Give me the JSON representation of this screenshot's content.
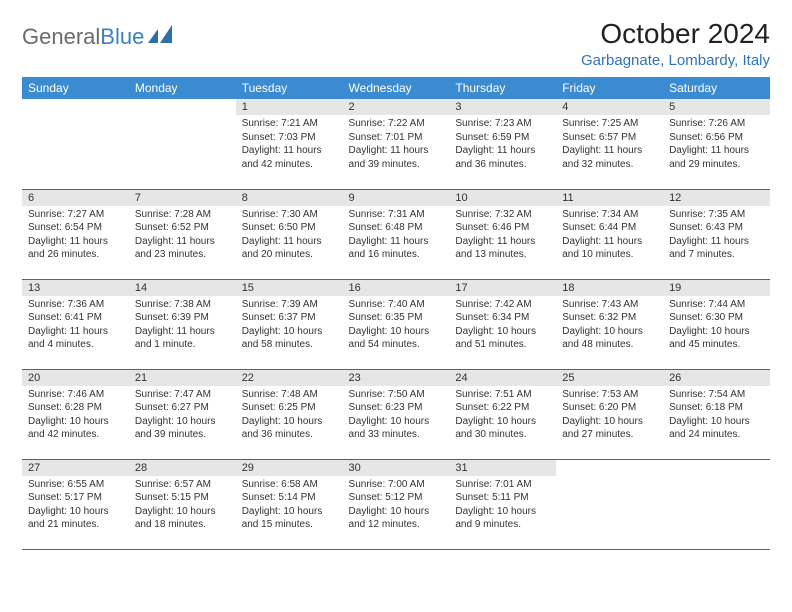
{
  "logo": {
    "general": "General",
    "blue": "Blue"
  },
  "title": "October 2024",
  "location": "Garbagnate, Lombardy, Italy",
  "colors": {
    "header_bg": "#3a8bd0",
    "header_text": "#ffffff",
    "daynum_bg": "#e6e6e6",
    "row_border": "#2f6fa8",
    "location_color": "#3074b5",
    "logo_gray": "#6b6b6b",
    "logo_blue": "#3b7fc4"
  },
  "weekdays": [
    "Sunday",
    "Monday",
    "Tuesday",
    "Wednesday",
    "Thursday",
    "Friday",
    "Saturday"
  ],
  "weeks": [
    [
      null,
      null,
      {
        "n": "1",
        "sr": "Sunrise: 7:21 AM",
        "ss": "Sunset: 7:03 PM",
        "dl": "Daylight: 11 hours and 42 minutes."
      },
      {
        "n": "2",
        "sr": "Sunrise: 7:22 AM",
        "ss": "Sunset: 7:01 PM",
        "dl": "Daylight: 11 hours and 39 minutes."
      },
      {
        "n": "3",
        "sr": "Sunrise: 7:23 AM",
        "ss": "Sunset: 6:59 PM",
        "dl": "Daylight: 11 hours and 36 minutes."
      },
      {
        "n": "4",
        "sr": "Sunrise: 7:25 AM",
        "ss": "Sunset: 6:57 PM",
        "dl": "Daylight: 11 hours and 32 minutes."
      },
      {
        "n": "5",
        "sr": "Sunrise: 7:26 AM",
        "ss": "Sunset: 6:56 PM",
        "dl": "Daylight: 11 hours and 29 minutes."
      }
    ],
    [
      {
        "n": "6",
        "sr": "Sunrise: 7:27 AM",
        "ss": "Sunset: 6:54 PM",
        "dl": "Daylight: 11 hours and 26 minutes."
      },
      {
        "n": "7",
        "sr": "Sunrise: 7:28 AM",
        "ss": "Sunset: 6:52 PM",
        "dl": "Daylight: 11 hours and 23 minutes."
      },
      {
        "n": "8",
        "sr": "Sunrise: 7:30 AM",
        "ss": "Sunset: 6:50 PM",
        "dl": "Daylight: 11 hours and 20 minutes."
      },
      {
        "n": "9",
        "sr": "Sunrise: 7:31 AM",
        "ss": "Sunset: 6:48 PM",
        "dl": "Daylight: 11 hours and 16 minutes."
      },
      {
        "n": "10",
        "sr": "Sunrise: 7:32 AM",
        "ss": "Sunset: 6:46 PM",
        "dl": "Daylight: 11 hours and 13 minutes."
      },
      {
        "n": "11",
        "sr": "Sunrise: 7:34 AM",
        "ss": "Sunset: 6:44 PM",
        "dl": "Daylight: 11 hours and 10 minutes."
      },
      {
        "n": "12",
        "sr": "Sunrise: 7:35 AM",
        "ss": "Sunset: 6:43 PM",
        "dl": "Daylight: 11 hours and 7 minutes."
      }
    ],
    [
      {
        "n": "13",
        "sr": "Sunrise: 7:36 AM",
        "ss": "Sunset: 6:41 PM",
        "dl": "Daylight: 11 hours and 4 minutes."
      },
      {
        "n": "14",
        "sr": "Sunrise: 7:38 AM",
        "ss": "Sunset: 6:39 PM",
        "dl": "Daylight: 11 hours and 1 minute."
      },
      {
        "n": "15",
        "sr": "Sunrise: 7:39 AM",
        "ss": "Sunset: 6:37 PM",
        "dl": "Daylight: 10 hours and 58 minutes."
      },
      {
        "n": "16",
        "sr": "Sunrise: 7:40 AM",
        "ss": "Sunset: 6:35 PM",
        "dl": "Daylight: 10 hours and 54 minutes."
      },
      {
        "n": "17",
        "sr": "Sunrise: 7:42 AM",
        "ss": "Sunset: 6:34 PM",
        "dl": "Daylight: 10 hours and 51 minutes."
      },
      {
        "n": "18",
        "sr": "Sunrise: 7:43 AM",
        "ss": "Sunset: 6:32 PM",
        "dl": "Daylight: 10 hours and 48 minutes."
      },
      {
        "n": "19",
        "sr": "Sunrise: 7:44 AM",
        "ss": "Sunset: 6:30 PM",
        "dl": "Daylight: 10 hours and 45 minutes."
      }
    ],
    [
      {
        "n": "20",
        "sr": "Sunrise: 7:46 AM",
        "ss": "Sunset: 6:28 PM",
        "dl": "Daylight: 10 hours and 42 minutes."
      },
      {
        "n": "21",
        "sr": "Sunrise: 7:47 AM",
        "ss": "Sunset: 6:27 PM",
        "dl": "Daylight: 10 hours and 39 minutes."
      },
      {
        "n": "22",
        "sr": "Sunrise: 7:48 AM",
        "ss": "Sunset: 6:25 PM",
        "dl": "Daylight: 10 hours and 36 minutes."
      },
      {
        "n": "23",
        "sr": "Sunrise: 7:50 AM",
        "ss": "Sunset: 6:23 PM",
        "dl": "Daylight: 10 hours and 33 minutes."
      },
      {
        "n": "24",
        "sr": "Sunrise: 7:51 AM",
        "ss": "Sunset: 6:22 PM",
        "dl": "Daylight: 10 hours and 30 minutes."
      },
      {
        "n": "25",
        "sr": "Sunrise: 7:53 AM",
        "ss": "Sunset: 6:20 PM",
        "dl": "Daylight: 10 hours and 27 minutes."
      },
      {
        "n": "26",
        "sr": "Sunrise: 7:54 AM",
        "ss": "Sunset: 6:18 PM",
        "dl": "Daylight: 10 hours and 24 minutes."
      }
    ],
    [
      {
        "n": "27",
        "sr": "Sunrise: 6:55 AM",
        "ss": "Sunset: 5:17 PM",
        "dl": "Daylight: 10 hours and 21 minutes."
      },
      {
        "n": "28",
        "sr": "Sunrise: 6:57 AM",
        "ss": "Sunset: 5:15 PM",
        "dl": "Daylight: 10 hours and 18 minutes."
      },
      {
        "n": "29",
        "sr": "Sunrise: 6:58 AM",
        "ss": "Sunset: 5:14 PM",
        "dl": "Daylight: 10 hours and 15 minutes."
      },
      {
        "n": "30",
        "sr": "Sunrise: 7:00 AM",
        "ss": "Sunset: 5:12 PM",
        "dl": "Daylight: 10 hours and 12 minutes."
      },
      {
        "n": "31",
        "sr": "Sunrise: 7:01 AM",
        "ss": "Sunset: 5:11 PM",
        "dl": "Daylight: 10 hours and 9 minutes."
      },
      null,
      null
    ]
  ]
}
